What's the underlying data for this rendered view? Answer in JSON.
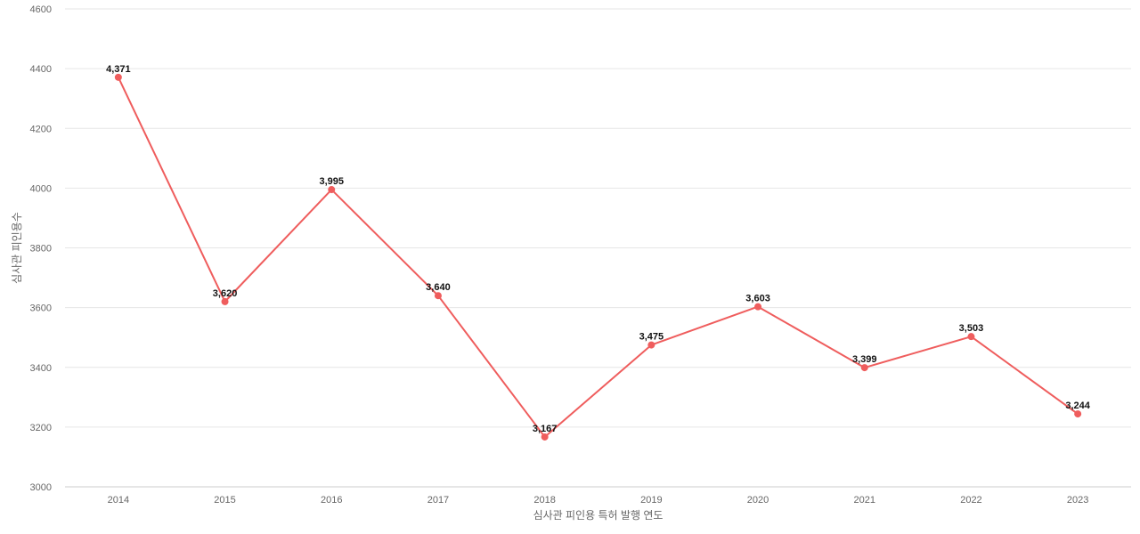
{
  "chart_data": {
    "type": "line",
    "x": [
      "2014",
      "2015",
      "2016",
      "2017",
      "2018",
      "2019",
      "2020",
      "2021",
      "2022",
      "2023"
    ],
    "series": [
      {
        "values": [
          4371,
          3620,
          3995,
          3640,
          3167,
          3475,
          3603,
          3399,
          3503,
          3244
        ],
        "labels": [
          "4,371",
          "3,620",
          "3,995",
          "3,640",
          "3,167",
          "3,475",
          "3,603",
          "3,399",
          "3,503",
          "3,244"
        ],
        "color": "#ef5d5d"
      }
    ],
    "xlabel": "심사관 피인용 특허 발행 연도",
    "ylabel": "심사관 피인용수",
    "ylim": [
      3000,
      4600
    ],
    "yticks": [
      "3000",
      "3200",
      "3400",
      "3600",
      "3800",
      "4000",
      "4200",
      "4400",
      "4600"
    ],
    "grid": true,
    "legend": "none"
  }
}
